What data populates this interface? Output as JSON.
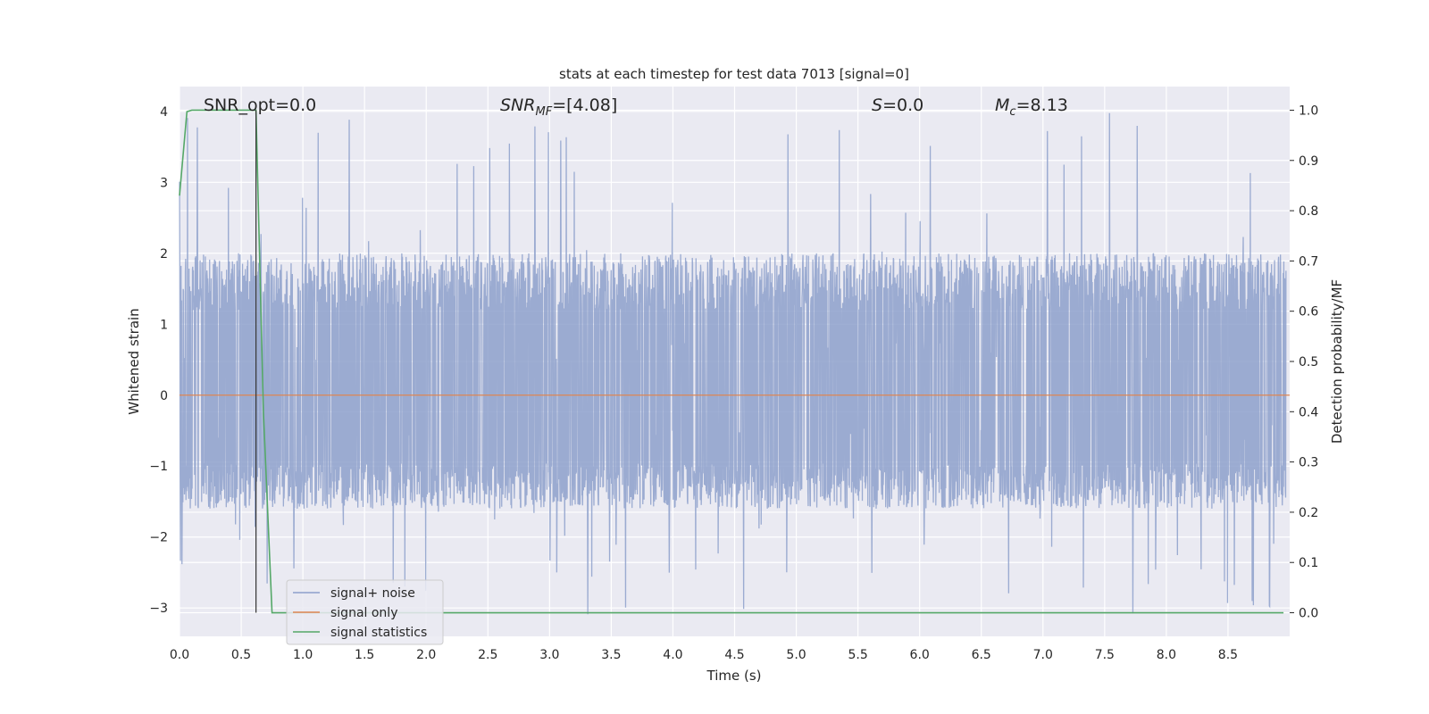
{
  "chart_data": {
    "type": "line",
    "title": "stats at each timestep for test data 7013 [signal=0]",
    "xlabel": "Time (s)",
    "ylabel_left": "Whitened strain",
    "ylabel_right": "Detection probability/MF",
    "xlim": [
      0.0,
      9.0
    ],
    "ylim_left": [
      -3.4,
      4.35
    ],
    "ylim_right": [
      -0.047,
      1.047
    ],
    "x_ticks": [
      "0.0",
      "0.5",
      "1.0",
      "1.5",
      "2.0",
      "2.5",
      "3.0",
      "3.5",
      "4.0",
      "4.5",
      "5.0",
      "5.5",
      "6.0",
      "6.5",
      "7.0",
      "7.5",
      "8.0",
      "8.5"
    ],
    "y_ticks_left": [
      "4",
      "3",
      "2",
      "1",
      "0",
      "−1",
      "−2",
      "−3"
    ],
    "y_ticks_right": [
      "1.0",
      "0.9",
      "0.8",
      "0.7",
      "0.6",
      "0.5",
      "0.4",
      "0.3",
      "0.2",
      "0.1",
      "0.0"
    ],
    "grid": true,
    "annotations": {
      "snr_opt": "SNR_opt=0.0",
      "snr_mf_main": "SNR",
      "snr_mf_sub": "MF",
      "snr_mf_value": "=[4.08]",
      "s_main": "S",
      "s_value": "=0.0",
      "mc_main": "M",
      "mc_sub": "c",
      "mc_value": "=8.13"
    },
    "vertical_marker_x": 0.62,
    "series": [
      {
        "name": "signal+ noise",
        "color": "#8da0cb",
        "axis": "left",
        "description_values": {
          "envelope_typical": [
            -1.6,
            2.0
          ],
          "peak_max": 4.0,
          "peak_min": -3.1
        }
      },
      {
        "name": "signal only",
        "color": "#dd8452",
        "axis": "left",
        "x": [
          0.0,
          9.0
        ],
        "y": [
          0.0,
          0.0
        ]
      },
      {
        "name": "signal statistics",
        "color": "#55a868",
        "axis": "right",
        "x": [
          0.0,
          0.06,
          0.1,
          0.15,
          0.3,
          0.45,
          0.55,
          0.62,
          0.68,
          0.75,
          1.0,
          2.0,
          3.0,
          4.0,
          5.0,
          6.0,
          7.0,
          8.0,
          8.95
        ],
        "y": [
          0.83,
          0.997,
          1.0,
          1.0,
          1.0,
          1.0,
          1.0,
          1.0,
          0.4,
          0.0,
          0.0,
          0.0,
          0.0,
          0.0,
          0.0,
          0.0,
          0.0,
          0.0,
          0.0
        ]
      }
    ],
    "legend_position": "lower-left"
  }
}
